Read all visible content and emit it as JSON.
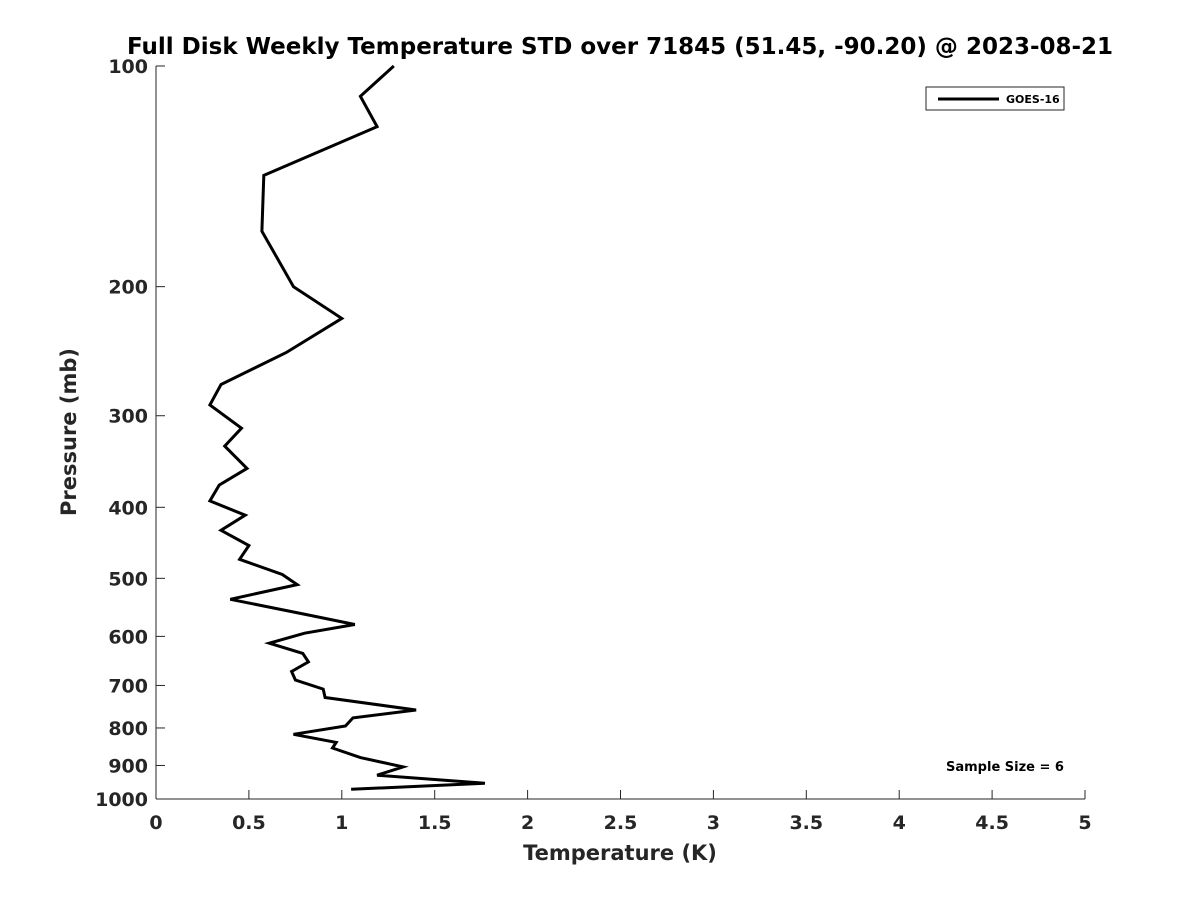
{
  "chart_data": {
    "type": "line",
    "title": "Full Disk Weekly Temperature STD over 71845 (51.45, -90.20) @ 2023-08-21",
    "xlabel": "Temperature (K)",
    "ylabel": "Pressure (mb)",
    "xlim": [
      0,
      5
    ],
    "ylim": [
      100,
      1000
    ],
    "y_scale": "log",
    "y_reversed": true,
    "x_ticks": [
      "0",
      "0.5",
      "1",
      "1.5",
      "2",
      "2.5",
      "3",
      "3.5",
      "4",
      "4.5",
      "5"
    ],
    "y_ticks": [
      "100",
      "200",
      "300",
      "400",
      "500",
      "600",
      "700",
      "800",
      "900",
      "1000"
    ],
    "grid": false,
    "legend_position": "top-right",
    "series": [
      {
        "name": "GOES-16",
        "color": "#000000",
        "x": [
          1.28,
          1.1,
          1.19,
          0.58,
          0.57,
          0.74,
          1.0,
          0.7,
          0.35,
          0.29,
          0.46,
          0.37,
          0.49,
          0.34,
          0.29,
          0.48,
          0.35,
          0.5,
          0.45,
          0.68,
          0.76,
          0.4,
          0.82,
          1.07,
          0.8,
          0.61,
          0.79,
          0.82,
          0.73,
          0.75,
          0.9,
          0.91,
          1.4,
          1.06,
          1.02,
          0.74,
          0.97,
          0.95,
          1.1,
          1.33,
          1.19,
          1.77,
          1.05
        ],
        "y": [
          100,
          110,
          121,
          141,
          168,
          200,
          221,
          246,
          272,
          290,
          312,
          330,
          354,
          373,
          392,
          410,
          430,
          451,
          471,
          494,
          510,
          534,
          561,
          578,
          594,
          613,
          633,
          650,
          670,
          688,
          708,
          727,
          756,
          775,
          795,
          816,
          837,
          852,
          878,
          904,
          928,
          952,
          970
        ]
      }
    ],
    "annotations": [
      "Sample Size = 6"
    ]
  }
}
